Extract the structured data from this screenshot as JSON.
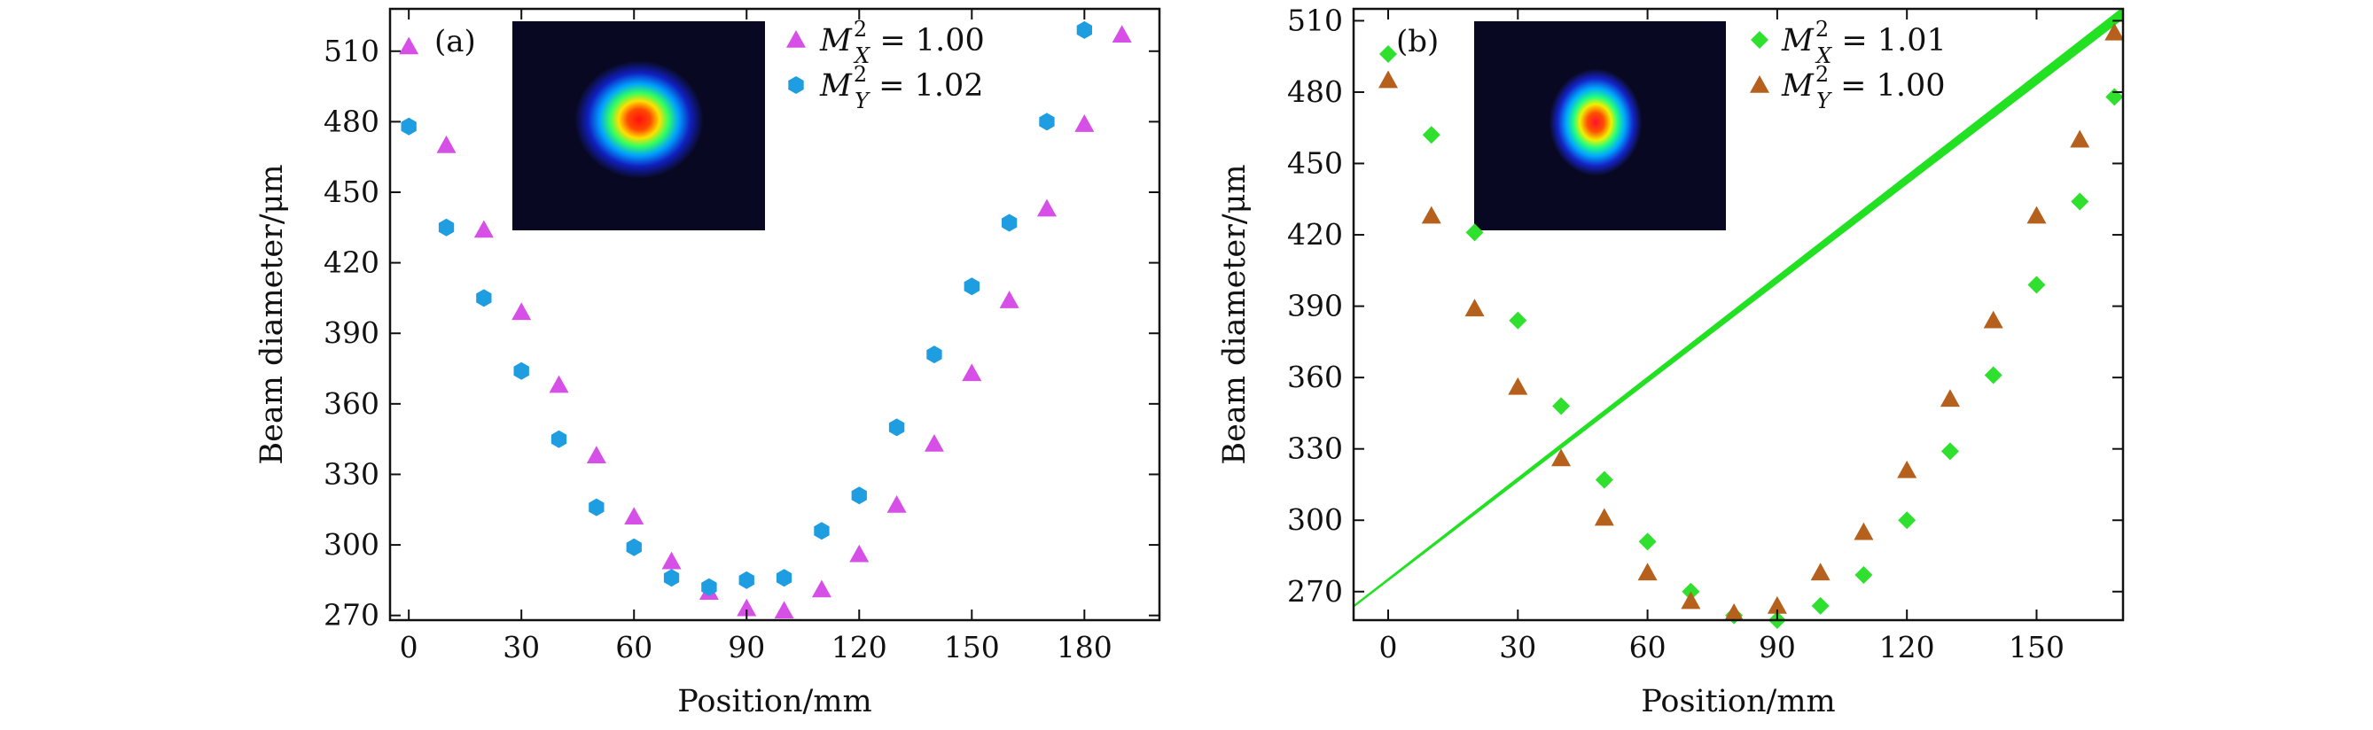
{
  "chart_data": [
    {
      "type": "scatter",
      "panel_label": "(a)",
      "xlabel": "Position/mm",
      "ylabel": "Beam diameter/μm",
      "xlim": [
        -5,
        200
      ],
      "ylim": [
        268,
        528
      ],
      "xticks": [
        0,
        30,
        60,
        90,
        120,
        150,
        180
      ],
      "yticks": [
        270,
        300,
        330,
        360,
        390,
        420,
        450,
        480,
        510
      ],
      "legend_position": "top-right",
      "inset": "beam-profile-image",
      "series": [
        {
          "name": "M2X",
          "legend_label": {
            "lead": "M",
            "sup": "2",
            "sub": "X",
            "rel": " = ",
            "value": "1.00"
          },
          "marker": "triangle",
          "color": "#d64fe6",
          "x": [
            0,
            10,
            20,
            30,
            40,
            50,
            60,
            70,
            80,
            90,
            100,
            110,
            120,
            130,
            140,
            150,
            160,
            170,
            180,
            190
          ],
          "y": [
            512,
            470,
            434,
            399,
            368,
            338,
            312,
            293,
            280,
            273,
            272,
            281,
            296,
            317,
            343,
            373,
            404,
            443,
            479,
            517
          ]
        },
        {
          "name": "M2Y",
          "legend_label": {
            "lead": "M",
            "sup": "2",
            "sub": "Y",
            "rel": " = ",
            "value": "1.02"
          },
          "marker": "hexagon",
          "color": "#1e9de0",
          "x": [
            0,
            10,
            20,
            30,
            40,
            50,
            60,
            70,
            80,
            90,
            100,
            110,
            120,
            130,
            140,
            150,
            160,
            170,
            180
          ],
          "y": [
            478,
            435,
            405,
            374,
            345,
            316,
            299,
            286,
            282,
            285,
            286,
            306,
            321,
            350,
            381,
            410,
            437,
            480,
            519
          ]
        }
      ]
    },
    {
      "type": "scatter",
      "panel_label": "(b)",
      "xlabel": "Position/mm",
      "ylabel": "Beam diameter/μm",
      "xlim": [
        -8,
        170
      ],
      "ylim": [
        258,
        515
      ],
      "xticks": [
        0,
        30,
        60,
        90,
        120,
        150
      ],
      "yticks": [
        270,
        300,
        330,
        360,
        390,
        420,
        450,
        480,
        510
      ],
      "legend_position": "top-right",
      "inset": "beam-profile-image",
      "overlay_line": {
        "color": "#22e022",
        "x": [
          -8,
          170
        ],
        "y": [
          264,
          514
        ]
      },
      "series": [
        {
          "name": "M2X",
          "legend_label": {
            "lead": "M",
            "sup": "2",
            "sub": "X",
            "rel": " = ",
            "value": "1.01"
          },
          "marker": "diamond",
          "color": "#2fe02f",
          "x": [
            0,
            10,
            20,
            30,
            40,
            50,
            60,
            70,
            80,
            90,
            100,
            110,
            120,
            130,
            140,
            150,
            160,
            168
          ],
          "y": [
            496,
            462,
            421,
            384,
            348,
            317,
            291,
            270,
            260,
            258,
            264,
            277,
            300,
            329,
            361,
            399,
            434,
            478
          ]
        },
        {
          "name": "M2Y",
          "legend_label": {
            "lead": "M",
            "sup": "2",
            "sub": "Y",
            "rel": " = ",
            "value": "1.00"
          },
          "marker": "triangle",
          "color": "#b5601c",
          "x": [
            0,
            10,
            20,
            30,
            40,
            50,
            60,
            70,
            80,
            90,
            100,
            110,
            120,
            130,
            140,
            150,
            160,
            168
          ],
          "y": [
            485,
            428,
            389,
            356,
            326,
            301,
            278,
            266,
            261,
            264,
            278,
            295,
            321,
            351,
            384,
            428,
            460,
            505
          ]
        }
      ]
    }
  ]
}
